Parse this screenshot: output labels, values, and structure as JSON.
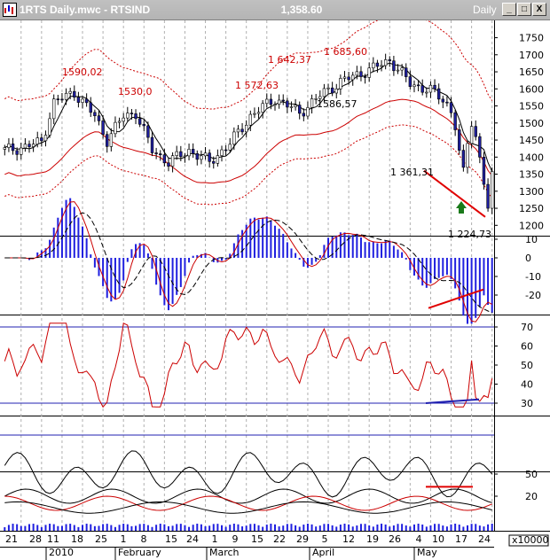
{
  "window": {
    "title": "1RTS Daily.mwc - RTSIND",
    "price": "1,358.60",
    "period": "Daily",
    "buttons": [
      "_",
      "□",
      "X"
    ]
  },
  "colors": {
    "up_candle": "#ffffff",
    "down_candle": "#1f1f9f",
    "ma_red": "#cc0000",
    "ma_black": "#000000",
    "band": "#cc0000",
    "hist_blue": "#1f1fdf",
    "level_line": "#2020b0",
    "arrow_green": "#1a7a1a"
  },
  "chart_data": [
    {
      "type": "line",
      "panel": "price",
      "yaxis_ticks": [
        1750,
        1700,
        1650,
        1600,
        1550,
        1500,
        1450,
        1400,
        1350,
        1300,
        1250,
        1200
      ],
      "ylim": [
        1180,
        1780
      ],
      "annotations": [
        {
          "text": "1590,02"
        },
        {
          "text": "1530,0"
        },
        {
          "text": "1 572,63"
        },
        {
          "text": "1 642,37"
        },
        {
          "text": "1 685,60"
        },
        {
          "text": "1586,57"
        },
        {
          "text": "1 361,31"
        },
        {
          "text": "1 224,73"
        }
      ]
    },
    {
      "type": "bar",
      "panel": "histogram",
      "yaxis_ticks": [
        10,
        0,
        -10,
        -20
      ]
    },
    {
      "type": "line",
      "panel": "oscillator",
      "yaxis_ticks": [
        70,
        60,
        50,
        40,
        30
      ]
    },
    {
      "type": "line",
      "panel": "indicator",
      "yaxis_ticks": [
        50
      ]
    },
    {
      "type": "line",
      "panel": "lower",
      "yaxis_ticks": [
        20
      ]
    }
  ],
  "xaxis": {
    "day_labels": [
      "21",
      "28",
      "11",
      "18",
      "25",
      "1",
      "8",
      "15",
      "24",
      "1",
      "9",
      "15",
      "22",
      "29",
      "5",
      "12",
      "19",
      "26",
      "4",
      "10",
      "17",
      "24"
    ],
    "month_labels": [
      "2010",
      "February",
      "March",
      "April",
      "May"
    ],
    "volume_multiplier": "x10000"
  }
}
